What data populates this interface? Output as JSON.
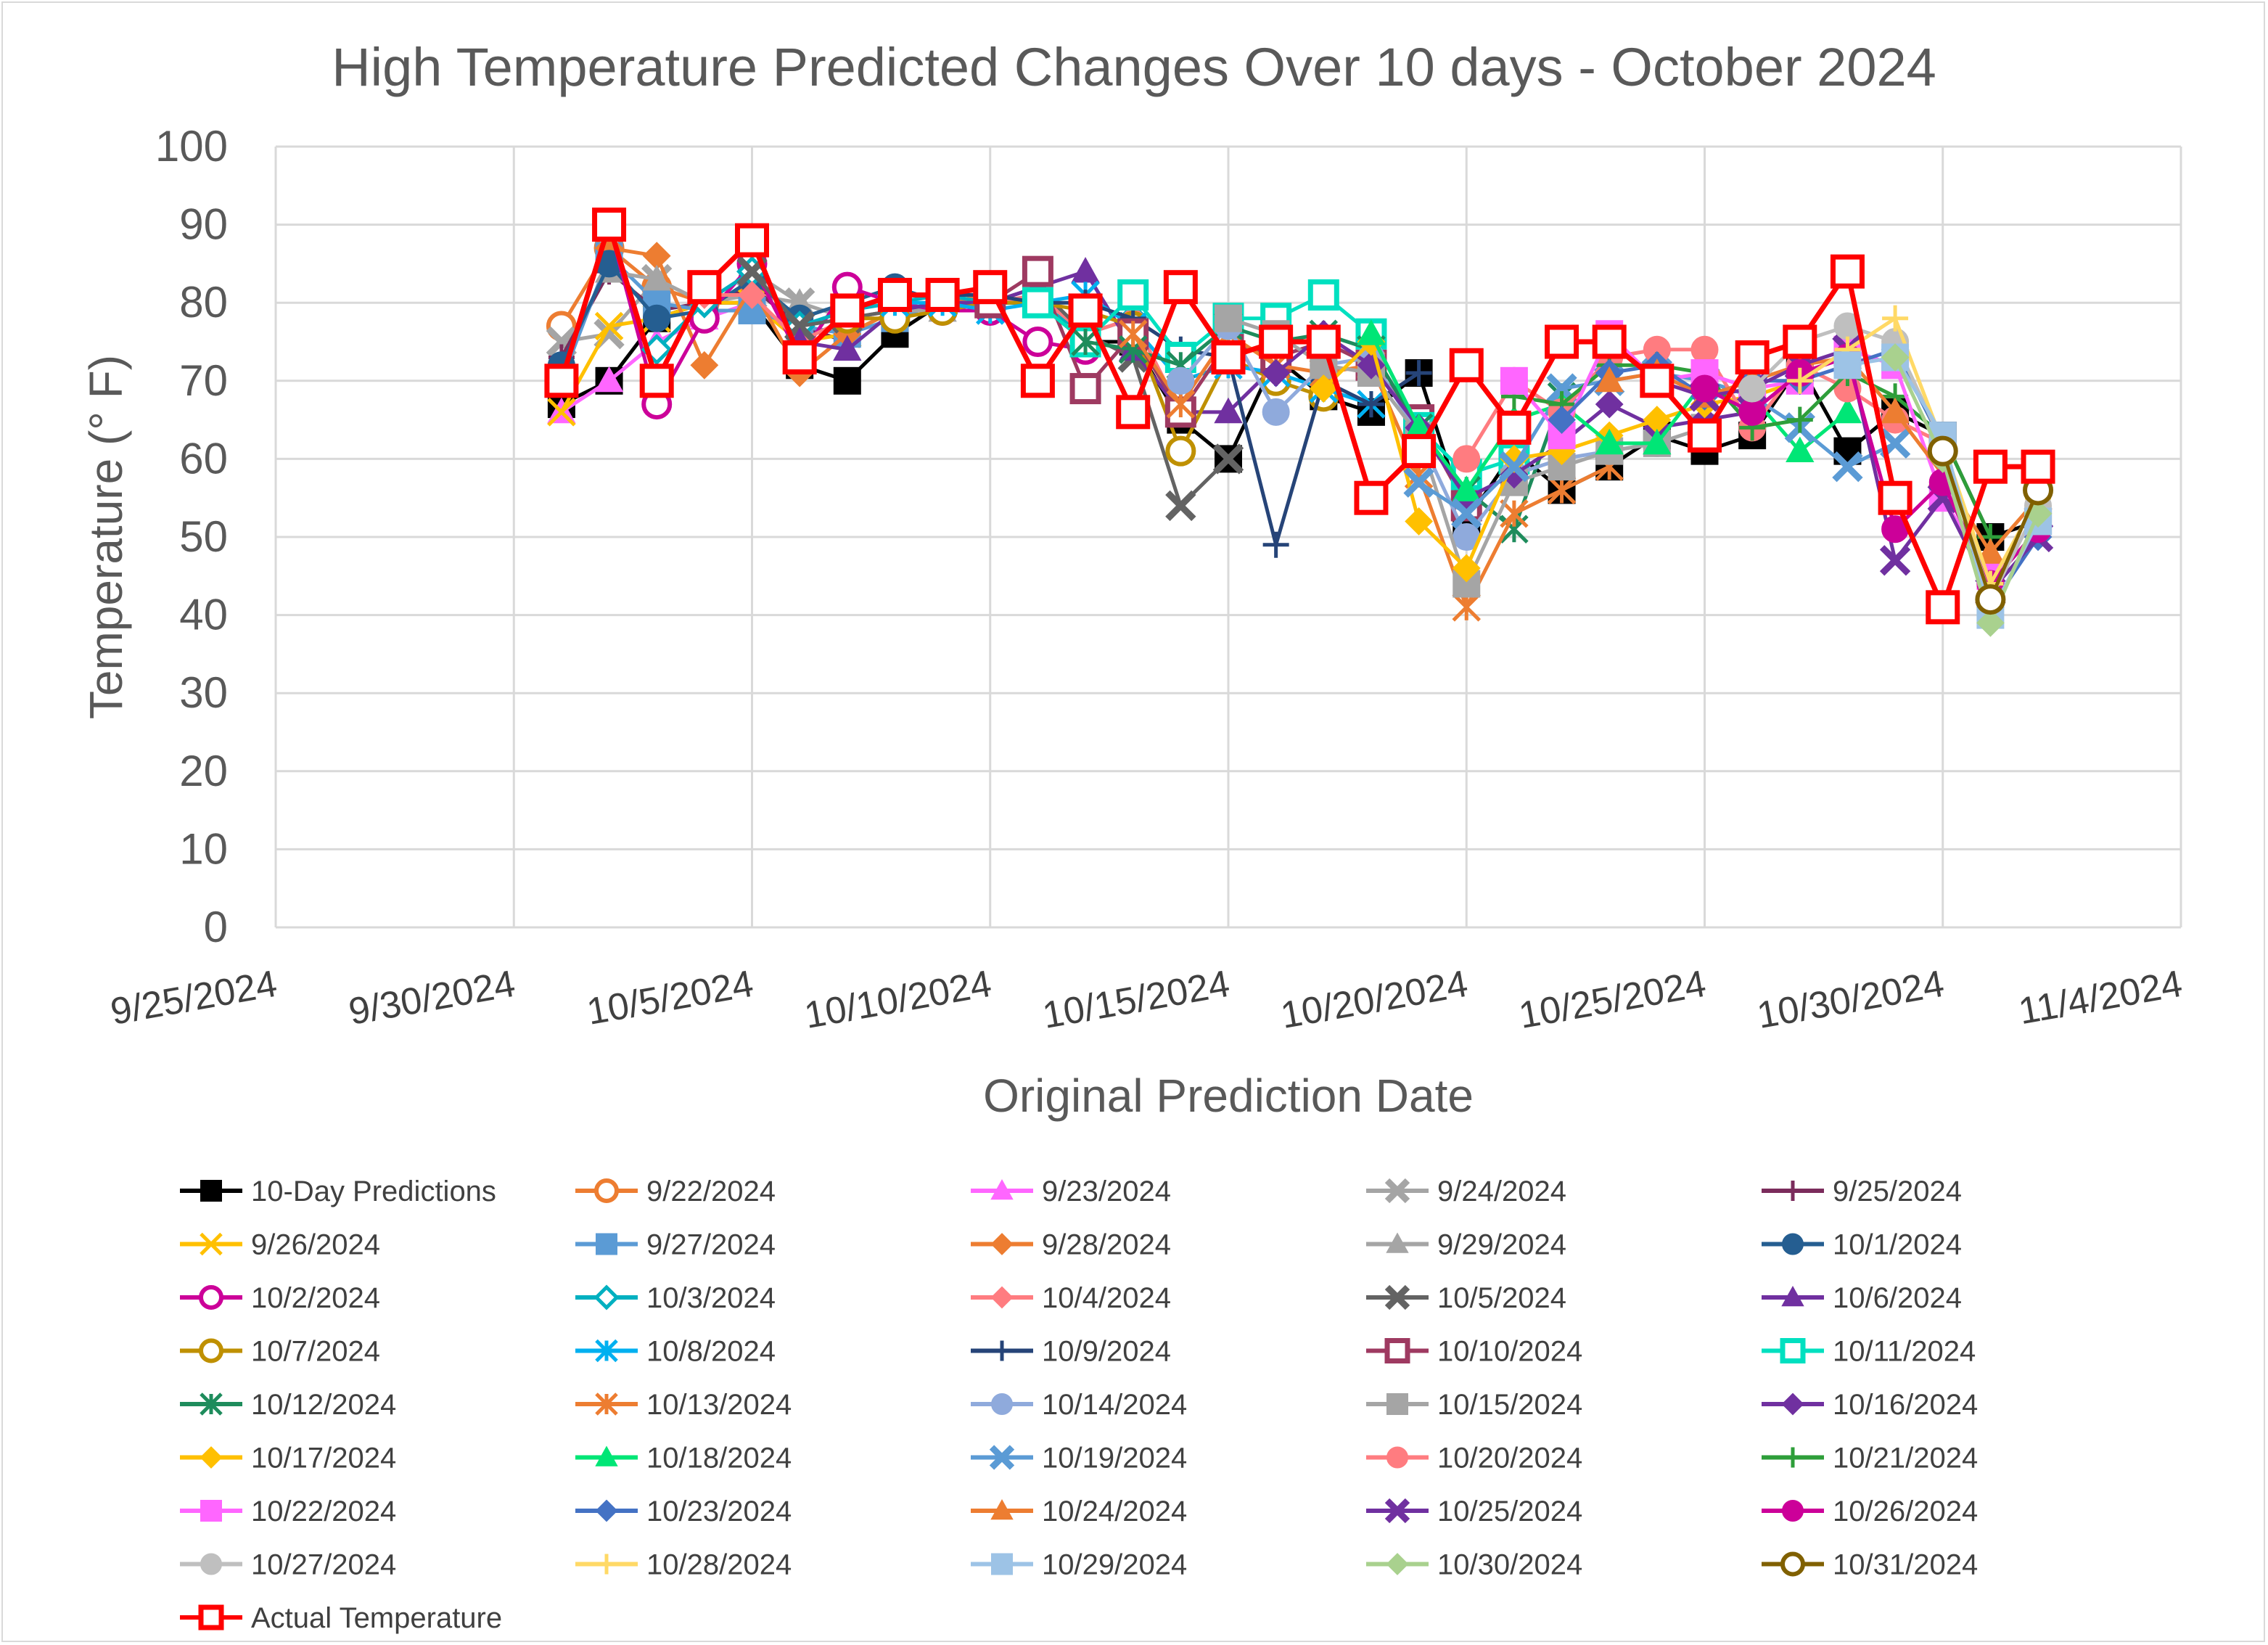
{
  "chart_data": {
    "type": "line",
    "title": "High Temperature Predicted Changes Over 10 days - October 2024",
    "xlabel": "Original Prediction Date",
    "ylabel": "Temperature (° F)",
    "ylim": [
      0,
      100
    ],
    "yticks": [
      0,
      10,
      20,
      30,
      40,
      50,
      60,
      70,
      80,
      90,
      100
    ],
    "xlim_day": [
      0,
      40
    ],
    "xtick_labels": [
      "9/25/2024",
      "9/30/2024",
      "10/5/2024",
      "10/10/2024",
      "10/15/2024",
      "10/20/2024",
      "10/25/2024",
      "10/30/2024",
      "11/4/2024"
    ],
    "grid": true,
    "x_note": "x values are day offsets from 9/25/2024",
    "series": [
      {
        "name": "10-Day Predictions",
        "color": "#000000",
        "marker": "square-filled",
        "x": [
          6,
          7,
          8,
          9,
          10,
          11,
          12,
          13,
          14,
          15,
          16,
          17,
          18,
          19,
          20,
          21,
          22,
          23,
          24,
          25,
          26,
          27,
          28,
          29,
          30,
          31,
          32,
          33,
          34,
          35,
          36,
          37
        ],
        "y": [
          67,
          70,
          78,
          80,
          80,
          72,
          70,
          76,
          80,
          80,
          80,
          75,
          75,
          65,
          60,
          73,
          68,
          66,
          71,
          52,
          61,
          56,
          59,
          63,
          61,
          63,
          72,
          61,
          66,
          63,
          50,
          52
        ]
      },
      {
        "name": "9/22/2024",
        "color": "#ed7d31",
        "marker": "circle-open",
        "x": [
          6,
          7,
          8,
          9
        ],
        "y": [
          77,
          87,
          82,
          80
        ]
      },
      {
        "name": "9/23/2024",
        "color": "#ff66ff",
        "marker": "triangle-filled",
        "x": [
          6,
          7,
          8,
          9,
          10
        ],
        "y": [
          66,
          70,
          75,
          78,
          80
        ]
      },
      {
        "name": "9/24/2024",
        "color": "#a5a5a5",
        "marker": "x-thick",
        "x": [
          6,
          7,
          8,
          9,
          10,
          11
        ],
        "y": [
          75,
          76,
          83,
          80,
          81,
          80
        ]
      },
      {
        "name": "9/25/2024",
        "color": "#7b2c5c",
        "marker": "plus",
        "x": [
          6,
          7,
          8,
          9,
          10,
          11,
          12
        ],
        "y": [
          73,
          84,
          79,
          80,
          82,
          77,
          75
        ]
      },
      {
        "name": "9/26/2024",
        "color": "#ffc000",
        "marker": "x",
        "x": [
          6,
          7,
          8,
          9,
          10,
          11,
          12,
          13
        ],
        "y": [
          66,
          77,
          78,
          80,
          80,
          75,
          76,
          79
        ]
      },
      {
        "name": "9/27/2024",
        "color": "#5b9bd5",
        "marker": "square-filled",
        "x": [
          6,
          7,
          8,
          9,
          10,
          11,
          12,
          13,
          14
        ],
        "y": [
          70,
          86,
          80,
          79,
          79,
          77,
          76,
          78,
          80
        ]
      },
      {
        "name": "9/28/2024",
        "color": "#ed7d31",
        "marker": "diamond-filled",
        "x": [
          7,
          8,
          9,
          10,
          11,
          12,
          13,
          14,
          15,
          16
        ],
        "y": [
          87,
          86,
          72,
          82,
          71,
          76,
          79,
          80,
          81,
          80
        ]
      },
      {
        "name": "9/29/2024",
        "color": "#a5a5a5",
        "marker": "triangle-filled",
        "x": [
          7,
          8,
          9,
          10,
          11,
          12,
          13,
          14,
          15,
          16
        ],
        "y": [
          84,
          83,
          80,
          84,
          80,
          78,
          79,
          79,
          80,
          80
        ]
      },
      {
        "name": "10/1/2024",
        "color": "#255e91",
        "marker": "circle-filled",
        "x": [
          6,
          7,
          8,
          9,
          10,
          11,
          12,
          13,
          14,
          15,
          16
        ],
        "y": [
          72,
          85,
          78,
          79,
          83,
          78,
          80,
          82,
          80,
          80,
          80
        ]
      },
      {
        "name": "10/2/2024",
        "color": "#cc0099",
        "marker": "circle-open",
        "x": [
          7,
          8,
          9,
          10,
          11,
          12,
          13,
          14,
          15,
          16,
          17
        ],
        "y": [
          90,
          67,
          78,
          85,
          73,
          82,
          80,
          79,
          79,
          75,
          74
        ]
      },
      {
        "name": "10/3/2024",
        "color": "#00b0c0",
        "marker": "diamond-open",
        "x": [
          8,
          9,
          10,
          11,
          12,
          13,
          14,
          15,
          16,
          17,
          18
        ],
        "y": [
          74,
          80,
          84,
          77,
          79,
          80,
          81,
          80,
          80,
          76,
          78
        ]
      },
      {
        "name": "10/4/2024",
        "color": "#ff7c80",
        "marker": "diamond-filled",
        "x": [
          9,
          10,
          11,
          12,
          13,
          14,
          15,
          16,
          17,
          18,
          19
        ],
        "y": [
          81,
          81,
          75,
          78,
          79,
          80,
          80,
          81,
          76,
          78,
          66
        ]
      },
      {
        "name": "10/5/2024",
        "color": "#636363",
        "marker": "x-thick",
        "x": [
          10,
          11,
          12,
          13,
          14,
          15,
          16,
          17,
          18,
          19,
          20
        ],
        "y": [
          84,
          77,
          78,
          79,
          80,
          80,
          82,
          76,
          73,
          54,
          60
        ]
      },
      {
        "name": "10/6/2024",
        "color": "#7030a0",
        "marker": "triangle-filled",
        "x": [
          11,
          12,
          13,
          14,
          15,
          16,
          17,
          18,
          19,
          20,
          21
        ],
        "y": [
          75,
          74,
          79,
          80,
          80,
          82,
          84,
          74,
          66,
          66,
          72
        ]
      },
      {
        "name": "10/7/2024",
        "color": "#bf9000",
        "marker": "circle-open",
        "x": [
          12,
          13,
          14,
          15,
          16,
          17,
          18,
          19,
          20,
          21,
          22
        ],
        "y": [
          78,
          78,
          79,
          80,
          80,
          79,
          77,
          61,
          73,
          70,
          68
        ]
      },
      {
        "name": "10/8/2024",
        "color": "#00b0f0",
        "marker": "asterisk",
        "x": [
          13,
          14,
          15,
          16,
          17,
          18,
          19,
          20,
          21,
          22,
          23
        ],
        "y": [
          80,
          80,
          79,
          80,
          81,
          77,
          70,
          72,
          71,
          69,
          67
        ]
      },
      {
        "name": "10/9/2024",
        "color": "#264478",
        "marker": "plus",
        "x": [
          14,
          15,
          16,
          17,
          18,
          19,
          20,
          21,
          22,
          23,
          24
        ],
        "y": [
          81,
          81,
          80,
          80,
          78,
          74,
          73,
          49,
          70,
          67,
          71
        ]
      },
      {
        "name": "10/10/2024",
        "color": "#9e3a61",
        "marker": "square-open",
        "x": [
          15,
          16,
          17,
          18,
          19,
          20,
          21,
          22,
          23,
          24,
          25
        ],
        "y": [
          80,
          84,
          69,
          76,
          66,
          75,
          73,
          75,
          72,
          65,
          54
        ]
      },
      {
        "name": "10/11/2024",
        "color": "#00e0c0",
        "marker": "square-open",
        "x": [
          16,
          17,
          18,
          19,
          20,
          21,
          22,
          23,
          24,
          25,
          26
        ],
        "y": [
          80,
          75,
          81,
          73,
          78,
          78,
          81,
          76,
          64,
          58,
          60
        ]
      },
      {
        "name": "10/12/2024",
        "color": "#1e8c5c",
        "marker": "asterisk",
        "x": [
          17,
          18,
          19,
          20,
          21,
          22,
          23,
          24,
          25,
          26,
          27
        ],
        "y": [
          75,
          74,
          72,
          77,
          75,
          76,
          74,
          64,
          56,
          51,
          68
        ]
      },
      {
        "name": "10/13/2024",
        "color": "#ed7d31",
        "marker": "asterisk",
        "x": [
          18,
          19,
          20,
          21,
          22,
          23,
          24,
          25,
          26,
          27,
          28
        ],
        "y": [
          76,
          67,
          76,
          72,
          71,
          72,
          58,
          41,
          53,
          56,
          59
        ]
      },
      {
        "name": "10/14/2024",
        "color": "#8faadc",
        "marker": "circle-filled",
        "x": [
          19,
          20,
          21,
          22,
          23,
          24,
          25,
          26,
          27,
          28,
          29
        ],
        "y": [
          70,
          77,
          66,
          72,
          73,
          63,
          50,
          58,
          60,
          61,
          62
        ]
      },
      {
        "name": "10/15/2024",
        "color": "#a5a5a5",
        "marker": "square-filled",
        "x": [
          20,
          21,
          22,
          23,
          24,
          25,
          26,
          27,
          28,
          29,
          30
        ],
        "y": [
          78,
          76,
          72,
          71,
          63,
          44,
          57,
          59,
          61,
          62,
          64
        ]
      },
      {
        "name": "10/16/2024",
        "color": "#7030a0",
        "marker": "diamond-filled",
        "x": [
          21,
          22,
          23,
          24,
          25,
          26,
          27,
          28,
          29,
          30,
          31
        ],
        "y": [
          71,
          76,
          72,
          64,
          55,
          58,
          62,
          67,
          64,
          65,
          66
        ]
      },
      {
        "name": "10/17/2024",
        "color": "#ffc000",
        "marker": "diamond-filled",
        "x": [
          22,
          23,
          24,
          25,
          26,
          27,
          28,
          29,
          30,
          31,
          32
        ],
        "y": [
          69,
          75,
          52,
          46,
          60,
          61,
          63,
          65,
          67,
          68,
          70
        ]
      },
      {
        "name": "10/18/2024",
        "color": "#00e676",
        "marker": "triangle-filled",
        "x": [
          23,
          24,
          25,
          26,
          27,
          28,
          29,
          30,
          31,
          32,
          33
        ],
        "y": [
          76,
          64,
          56,
          65,
          67,
          62,
          62,
          70,
          68,
          61,
          66
        ]
      },
      {
        "name": "10/19/2024",
        "color": "#5b9bd5",
        "marker": "x-thick",
        "x": [
          24,
          25,
          26,
          27,
          28,
          29,
          30,
          31,
          32,
          33,
          34
        ],
        "y": [
          57,
          53,
          59,
          69,
          70,
          71,
          70,
          68,
          64,
          59,
          62
        ]
      },
      {
        "name": "10/20/2024",
        "color": "#ff7c80",
        "marker": "circle-filled",
        "x": [
          25,
          26,
          27,
          28,
          29,
          30,
          31,
          32,
          33,
          34,
          35
        ],
        "y": [
          60,
          70,
          66,
          73,
          74,
          74,
          64,
          72,
          69,
          65,
          62
        ]
      },
      {
        "name": "10/21/2024",
        "color": "#2e9e3a",
        "marker": "plus",
        "x": [
          26,
          27,
          28,
          29,
          30,
          31,
          32,
          33,
          34,
          35,
          36
        ],
        "y": [
          68,
          67,
          72,
          72,
          71,
          64,
          65,
          71,
          68,
          63,
          50
        ]
      },
      {
        "name": "10/22/2024",
        "color": "#ff66ff",
        "marker": "square-filled",
        "x": [
          26,
          27,
          28,
          29,
          30,
          31,
          32,
          33,
          34,
          35,
          36
        ],
        "y": [
          70,
          63,
          76,
          70,
          71,
          69,
          70,
          74,
          72,
          55,
          45
        ]
      },
      {
        "name": "10/23/2024",
        "color": "#4472c4",
        "marker": "diamond-filled",
        "x": [
          27,
          28,
          29,
          30,
          31,
          32,
          33,
          34,
          35,
          36,
          37
        ],
        "y": [
          65,
          71,
          72,
          68,
          70,
          70,
          72,
          74,
          62,
          41,
          50
        ]
      },
      {
        "name": "10/24/2024",
        "color": "#ed7d31",
        "marker": "triangle-filled",
        "x": [
          28,
          29,
          30,
          31,
          32,
          33,
          34,
          35,
          36,
          37
        ],
        "y": [
          70,
          71,
          68,
          70,
          72,
          73,
          66,
          58,
          48,
          55
        ]
      },
      {
        "name": "10/25/2024",
        "color": "#7030a0",
        "marker": "x-thick",
        "x": [
          29,
          30,
          31,
          32,
          33,
          34,
          35,
          36,
          37
        ],
        "y": [
          70,
          68,
          69,
          72,
          74,
          47,
          55,
          43,
          50
        ]
      },
      {
        "name": "10/26/2024",
        "color": "#cc0099",
        "marker": "circle-filled",
        "x": [
          30,
          31,
          32,
          33,
          34,
          35,
          36,
          37
        ],
        "y": [
          69,
          66,
          71,
          73,
          51,
          57,
          44,
          51
        ]
      },
      {
        "name": "10/27/2024",
        "color": "#bfbfbf",
        "marker": "circle-filled",
        "x": [
          31,
          32,
          33,
          34,
          35,
          36,
          37
        ],
        "y": [
          69,
          75,
          77,
          75,
          62,
          42,
          54
        ]
      },
      {
        "name": "10/28/2024",
        "color": "#ffd966",
        "marker": "plus",
        "x": [
          32,
          33,
          34,
          35,
          36,
          37
        ],
        "y": [
          70,
          74,
          78,
          62,
          44,
          55
        ]
      },
      {
        "name": "10/29/2024",
        "color": "#9dc3e6",
        "marker": "square-filled",
        "x": [
          33,
          34,
          35,
          36,
          37
        ],
        "y": [
          72,
          73,
          63,
          40,
          52
        ]
      },
      {
        "name": "10/30/2024",
        "color": "#a9d18e",
        "marker": "diamond-filled",
        "x": [
          34,
          35,
          36,
          37
        ],
        "y": [
          73,
          60,
          39,
          53
        ]
      },
      {
        "name": "10/31/2024",
        "color": "#806000",
        "marker": "circle-open",
        "x": [
          35,
          36,
          37
        ],
        "y": [
          61,
          42,
          56
        ]
      },
      {
        "name": "Actual Temperature",
        "color": "#ff0000",
        "marker": "square-open",
        "x": [
          6,
          7,
          8,
          9,
          10,
          11,
          12,
          13,
          14,
          15,
          16,
          17,
          18,
          19,
          20,
          21,
          22,
          23,
          24,
          25,
          26,
          27,
          28,
          29,
          30,
          31,
          32,
          33,
          34,
          35,
          36,
          37
        ],
        "y": [
          70,
          90,
          70,
          82,
          88,
          73,
          79,
          81,
          81,
          82,
          70,
          79,
          66,
          82,
          73,
          75,
          75,
          55,
          61,
          72,
          64,
          75,
          75,
          70,
          63,
          73,
          75,
          84,
          55,
          41,
          59,
          59
        ]
      }
    ]
  }
}
